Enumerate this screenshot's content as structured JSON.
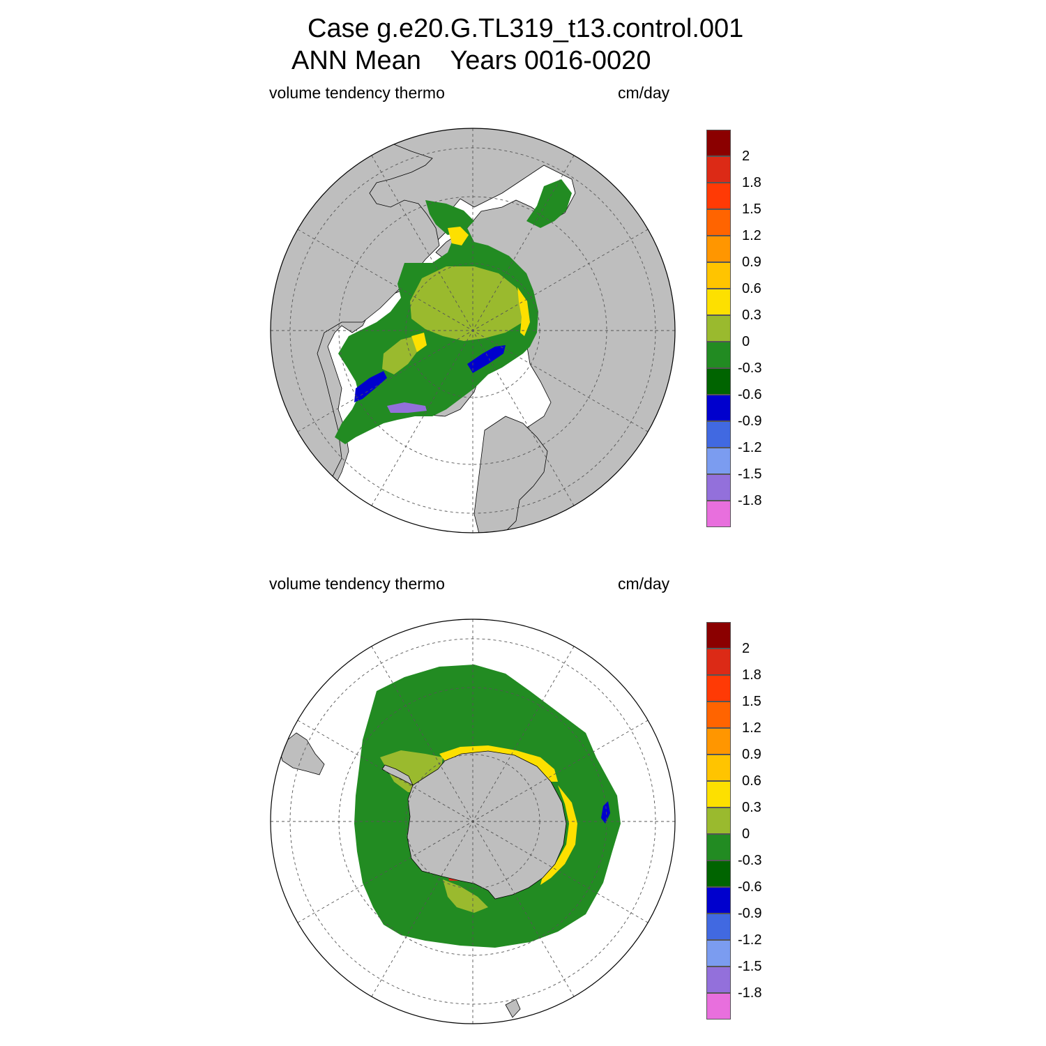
{
  "header": {
    "case_line": "Case g.e20.G.TL319_t13.control.001",
    "period_line": "ANN Mean    Years 0016-0020"
  },
  "panels": [
    {
      "id": "north",
      "variable": "volume tendency thermo",
      "units": "cm/day"
    },
    {
      "id": "south",
      "variable": "volume tendency thermo",
      "units": "cm/day"
    }
  ],
  "colorbar": {
    "labels": [
      "2",
      "1.8",
      "1.5",
      "1.2",
      "0.9",
      "0.6",
      "0.3",
      "0",
      "-0.3",
      "-0.6",
      "-0.9",
      "-1.2",
      "-1.5",
      "-1.8"
    ],
    "colors": [
      "#8b0000",
      "#dc2a16",
      "#ff3a05",
      "#ff6400",
      "#ff9600",
      "#ffc400",
      "#fde000",
      "#9aba2e",
      "#228b22",
      "#006400",
      "#0000cd",
      "#4169e1",
      "#7b9cf0",
      "#9370db",
      "#e86fdd"
    ]
  },
  "map_colors": {
    "land": "#bebebe",
    "ocean": "#ffffff",
    "grid": "#555555"
  }
}
